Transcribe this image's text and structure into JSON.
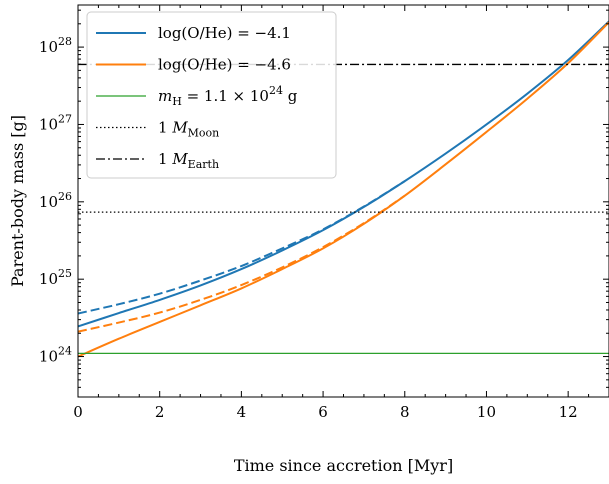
{
  "chart_data": {
    "type": "line",
    "xlabel": "Time since accretion [Myr]",
    "ylabel": "Parent-body mass [g]",
    "xlim": [
      0,
      13
    ],
    "ylim": [
      3e+23,
      3.5e+28
    ],
    "yscale": "log",
    "x_ticks": [
      0,
      2,
      4,
      6,
      8,
      10,
      12
    ],
    "y_ticks": [
      {
        "value": 1e+24,
        "base": "10",
        "exp": "24"
      },
      {
        "value": 1e+25,
        "base": "10",
        "exp": "25"
      },
      {
        "value": 1e+26,
        "base": "10",
        "exp": "26"
      },
      {
        "value": 1e+27,
        "base": "10",
        "exp": "27"
      },
      {
        "value": 1e+28,
        "base": "10",
        "exp": "28"
      }
    ],
    "grid": false,
    "legend_position": "top-left",
    "legend": [
      {
        "label": "log(O/He) = −4.1",
        "color": "#1f77b4",
        "style": "solid"
      },
      {
        "label": "log(O/He) = −4.6",
        "color": "#ff7f0e",
        "style": "solid"
      },
      {
        "label": "m_H = 1.1 × 10^24 g",
        "color": "#2ca02c",
        "style": "solid"
      },
      {
        "label": "1 M_Moon",
        "color": "#000000",
        "style": "dotted"
      },
      {
        "label": "1 M_Earth",
        "color": "#000000",
        "style": "dashdot"
      }
    ],
    "series": [
      {
        "name": "log(O/He) = −4.1",
        "color": "#1f77b4",
        "style": "solid",
        "x": [
          0,
          1,
          2,
          3,
          4,
          5,
          6,
          7,
          8,
          9,
          10,
          11,
          12,
          13
        ],
        "y": [
          2.45e+24,
          3.65e+24,
          5.4e+24,
          8.3e+24,
          1.35e+25,
          2.35e+25,
          4.3e+25,
          8.6e+25,
          1.85e+26,
          4.2e+26,
          1e+27,
          2.5e+27,
          6.8e+27,
          2.15e+28
        ]
      },
      {
        "name": "log(O/He) = −4.1",
        "color": "#1f77b4",
        "style": "dashed",
        "x": [
          0,
          1,
          2,
          3,
          4,
          5,
          6,
          7,
          8
        ],
        "y": [
          3.6e+24,
          4.75e+24,
          6.5e+24,
          9.6e+24,
          1.48e+25,
          2.5e+25,
          4.4e+25,
          8.7e+25,
          1.85e+26
        ]
      },
      {
        "name": "log(O/He) = −4.6",
        "color": "#ff7f0e",
        "style": "solid",
        "x": [
          0,
          1,
          2,
          3,
          4,
          5,
          6,
          7,
          8,
          9,
          10,
          11,
          12,
          13
        ],
        "y": [
          1e+24,
          1.7e+24,
          2.8e+24,
          4.6e+24,
          7.6e+24,
          1.35e+25,
          2.5e+25,
          5.2e+25,
          1.2e+26,
          3.05e+26,
          8e+26,
          2.15e+27,
          6.2e+27,
          2.1e+28
        ]
      },
      {
        "name": "log(O/He) = −4.6",
        "color": "#ff7f0e",
        "style": "dashed",
        "x": [
          0,
          1,
          2,
          3,
          4,
          5,
          6,
          7,
          8
        ],
        "y": [
          2.1e+24,
          2.75e+24,
          3.7e+24,
          5.4e+24,
          8.4e+24,
          1.42e+25,
          2.6e+25,
          5.3e+25,
          1.2e+26
        ]
      },
      {
        "name": "m_H = 1.1 × 10^24 g",
        "color": "#2ca02c",
        "style": "solid",
        "x": [
          0,
          13
        ],
        "y": [
          1.1e+24,
          1.1e+24
        ]
      },
      {
        "name": "1 M_Moon",
        "color": "#000000",
        "style": "dotted",
        "x": [
          0,
          13
        ],
        "y": [
          7.35e+25,
          7.35e+25
        ]
      },
      {
        "name": "1 M_Earth",
        "color": "#000000",
        "style": "dashdot",
        "x": [
          0,
          13
        ],
        "y": [
          5.97e+27,
          5.97e+27
        ]
      }
    ]
  }
}
